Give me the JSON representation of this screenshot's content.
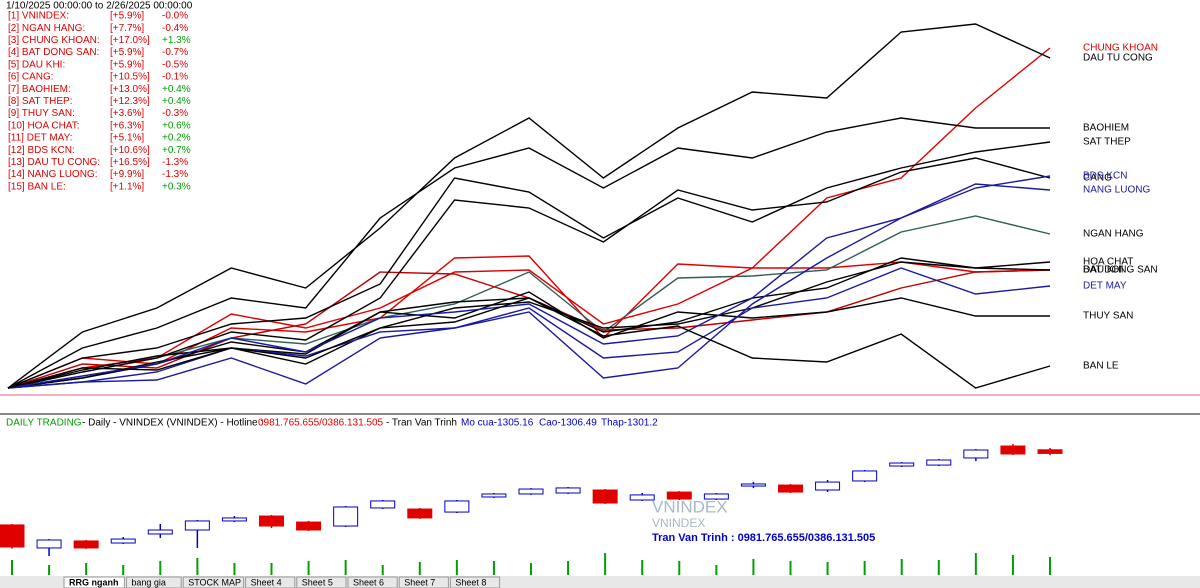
{
  "chart_data": [
    {
      "type": "line",
      "title": "1/10/2025 00:00:00 to 2/26/2025 00:00:00",
      "series": [
        {
          "label": "[1] VNINDEX:",
          "total": "[+5.9%]",
          "change": "-0.0%",
          "color": "#e00000",
          "values": [
            0,
            1.5,
            1.2,
            3.0,
            2.8,
            3.5,
            6.5,
            6.6,
            2.5,
            6.2,
            6.0,
            6.0,
            6.3,
            5.8,
            5.9
          ]
        },
        {
          "label": "[2] NGAN HANG:",
          "total": "[+7.7%]",
          "change": "-0.4%",
          "color": "#2f5f55",
          "end_label": "NGAN HANG",
          "values": [
            0,
            0.8,
            1.5,
            2.5,
            2.2,
            3.5,
            4.2,
            5.8,
            2.8,
            5.5,
            5.6,
            5.9,
            7.8,
            8.6,
            7.7
          ]
        },
        {
          "label": "[3] CHUNG KHOAN:",
          "total": "[+17.0%]",
          "change": "+1.3%",
          "color": "#e00000",
          "end_label": "CHUNG KHOAN",
          "values": [
            0,
            1.0,
            1.5,
            3.7,
            3.0,
            4.0,
            5.8,
            5.9,
            3.2,
            4.2,
            6.0,
            9.5,
            10.5,
            14.0,
            17.0
          ]
        },
        {
          "label": "[4] BAT DONG SAN:",
          "total": "[+5.9%]",
          "change": "-0.7%",
          "color": "#c00000",
          "end_label": "BAT DONG SAN",
          "values": [
            0,
            1.2,
            1.0,
            2.5,
            3.2,
            5.8,
            5.7,
            4.5,
            2.9,
            3.0,
            3.4,
            3.8,
            5.0,
            5.8,
            5.9
          ]
        },
        {
          "label": "[5] DAU KHI:",
          "total": "[+5.9%]",
          "change": "-0.5%",
          "color": "#000000",
          "end_label": "DAU KHI",
          "values": [
            0,
            0.5,
            1.3,
            2.0,
            1.2,
            3.0,
            4.0,
            4.3,
            3.0,
            3.2,
            4.0,
            5.3,
            6.3,
            6.0,
            5.9
          ]
        },
        {
          "label": "[6] CANG:",
          "total": "[+10.5%]",
          "change": "-0.1%",
          "color": "#000000",
          "end_label": "CANG",
          "values": [
            0,
            0.8,
            1.5,
            2.8,
            2.4,
            4.5,
            9.4,
            9.0,
            7.3,
            9.9,
            8.9,
            9.3,
            10.8,
            11.5,
            10.5
          ]
        },
        {
          "label": "[7] BAOHIEM:",
          "total": "[+13.0%]",
          "change": "+0.4%",
          "color": "#000000",
          "end_label": "BAOHIEM",
          "values": [
            0,
            2.0,
            3.0,
            4.5,
            4.0,
            8.5,
            11.0,
            12.0,
            10.0,
            12.0,
            11.5,
            12.8,
            13.5,
            13.0,
            13.0
          ]
        },
        {
          "label": "[8] SAT THEP:",
          "total": "[+12.3%]",
          "change": "+0.4%",
          "color": "#000000",
          "end_label": "SAT THEP",
          "values": [
            0,
            1.5,
            2.0,
            3.2,
            3.5,
            5.2,
            10.5,
            9.8,
            7.5,
            9.5,
            8.3,
            10.0,
            11.0,
            11.8,
            12.3
          ]
        },
        {
          "label": "[9] THUY SAN:",
          "total": "[+3.6%]",
          "change": "-0.3%",
          "color": "#000000",
          "end_label": "THUY SAN",
          "values": [
            0,
            0.5,
            1.2,
            2.3,
            1.8,
            3.8,
            3.5,
            4.8,
            2.5,
            3.8,
            3.5,
            3.8,
            4.5,
            3.6,
            3.6
          ]
        },
        {
          "label": "[10] HOA CHAT:",
          "total": "[+6.3%]",
          "change": "+0.6%",
          "color": "#000000",
          "end_label": "HOA CHAT",
          "values": [
            0,
            0.9,
            1.6,
            2.0,
            1.7,
            3.8,
            4.3,
            4.5,
            2.8,
            3.3,
            4.5,
            5.0,
            6.5,
            6.0,
            6.3
          ]
        },
        {
          "label": "[11] DET MAY:",
          "total": "[+5.1%]",
          "change": "+0.2%",
          "color": "#1a1aa0",
          "end_label": "DET MAY",
          "values": [
            0,
            0.3,
            0.8,
            2.0,
            1.6,
            2.8,
            3.0,
            4.0,
            1.5,
            1.8,
            4.0,
            4.5,
            6.0,
            4.7,
            5.1
          ]
        },
        {
          "label": "[12] BDS KCN:",
          "total": "[+10.6%]",
          "change": "+0.7%",
          "color": "#1a1aa0",
          "end_label": "BDS KCN",
          "values": [
            0,
            0.6,
            1.2,
            2.5,
            1.8,
            3.5,
            3.8,
            4.2,
            2.2,
            2.6,
            4.5,
            7.5,
            8.5,
            10.0,
            10.6
          ]
        },
        {
          "label": "[13] DAU TU CONG:",
          "total": "[+16.5%]",
          "change": "-1.3%",
          "color": "#000000",
          "end_label": "DAU TU CONG",
          "values": [
            0,
            2.8,
            4.0,
            6.0,
            5.0,
            8.0,
            11.5,
            13.5,
            10.5,
            13.0,
            14.8,
            14.5,
            17.8,
            18.2,
            16.5
          ]
        },
        {
          "label": "[14] NANG LUONG:",
          "total": "[+9.9%]",
          "change": "-1.3%",
          "color": "#1a1aa0",
          "end_label": "NANG LUONG",
          "values": [
            0,
            0.3,
            0.4,
            1.5,
            0.2,
            2.5,
            3.0,
            3.8,
            0.5,
            1.0,
            4.2,
            6.5,
            8.5,
            10.2,
            9.9
          ]
        },
        {
          "label": "[15] BAN LE:",
          "total": "[+1.1%]",
          "change": "+0.3%",
          "color": "#000000",
          "end_label": "BAN LE",
          "values": [
            0,
            1.0,
            0.9,
            2.0,
            1.5,
            3.0,
            3.3,
            4.5,
            2.6,
            3.1,
            1.5,
            1.3,
            2.7,
            0.0,
            1.1
          ]
        }
      ]
    },
    {
      "type": "candlestick",
      "header": [
        "DAILY TRADING",
        "- Daily - VNINDEX (VNINDEX) - Hotline :",
        "0981.765.655/0386.131.505",
        "- Tran Van Trinh",
        "Mo cua-1305.16",
        "Cao-1306.49",
        "Thap-1301.2"
      ],
      "watermark": [
        "VNINDEX",
        "VNINDEX",
        "Tran Van Trinh : 0981.765.655/0386.131.505"
      ],
      "up_color": "#0000c8",
      "down_color": "#e00000",
      "volume_color": "#00a000",
      "open": [
        1250.3,
        1233.5,
        1238.6,
        1237.1,
        1243.7,
        1246.6,
        1253.2,
        1256.8,
        1252.4,
        1249.5,
        1262.7,
        1261.9,
        1259.7,
        1270.7,
        1272.9,
        1273.6,
        1275.8,
        1268.5,
        1274.3,
        1269.2,
        1278.7,
        1279.4,
        1275.8,
        1282.4,
        1293.3,
        1294.0,
        1299.2,
        1307.9,
        1305.16
      ],
      "high": [
        1251.0,
        1240.0,
        1239.3,
        1241.5,
        1251.0,
        1253.9,
        1256.8,
        1257.6,
        1253.2,
        1264.1,
        1268.5,
        1262.7,
        1268.5,
        1273.6,
        1277.2,
        1278.0,
        1276.5,
        1273.6,
        1275.0,
        1273.6,
        1281.6,
        1280.2,
        1283.1,
        1290.4,
        1296.2,
        1298.4,
        1305.7,
        1309.4,
        1306.49
      ],
      "low": [
        1233.0,
        1227.6,
        1232.8,
        1236.4,
        1240.8,
        1233.5,
        1252.4,
        1248.0,
        1245.9,
        1248.8,
        1262.0,
        1254.7,
        1259.0,
        1270.0,
        1272.2,
        1272.9,
        1265.6,
        1267.8,
        1268.5,
        1268.5,
        1277.2,
        1273.6,
        1274.3,
        1281.6,
        1292.6,
        1293.3,
        1296.9,
        1301.4,
        1301.2
      ],
      "close": [
        1234.2,
        1239.3,
        1233.5,
        1240.0,
        1246.6,
        1253.2,
        1255.4,
        1249.5,
        1246.6,
        1263.4,
        1267.8,
        1255.4,
        1267.8,
        1272.9,
        1276.5,
        1277.3,
        1266.3,
        1272.2,
        1269.2,
        1272.9,
        1280.2,
        1274.3,
        1281.6,
        1289.7,
        1295.5,
        1297.7,
        1305.0,
        1302.1,
        1302.5
      ],
      "volume": [
        15,
        10,
        12,
        10,
        14,
        17,
        12,
        12,
        14,
        15,
        10,
        13,
        15,
        14,
        12,
        14,
        22,
        15,
        14,
        10,
        16,
        14,
        13,
        14,
        16,
        15,
        22,
        20,
        18
      ]
    }
  ],
  "tabs": [
    "RRG nganh",
    "bang gia",
    "STOCK MAP",
    "Sheet 4",
    "Sheet 5",
    "Sheet 6",
    "Sheet 7",
    "Sheet 8"
  ]
}
